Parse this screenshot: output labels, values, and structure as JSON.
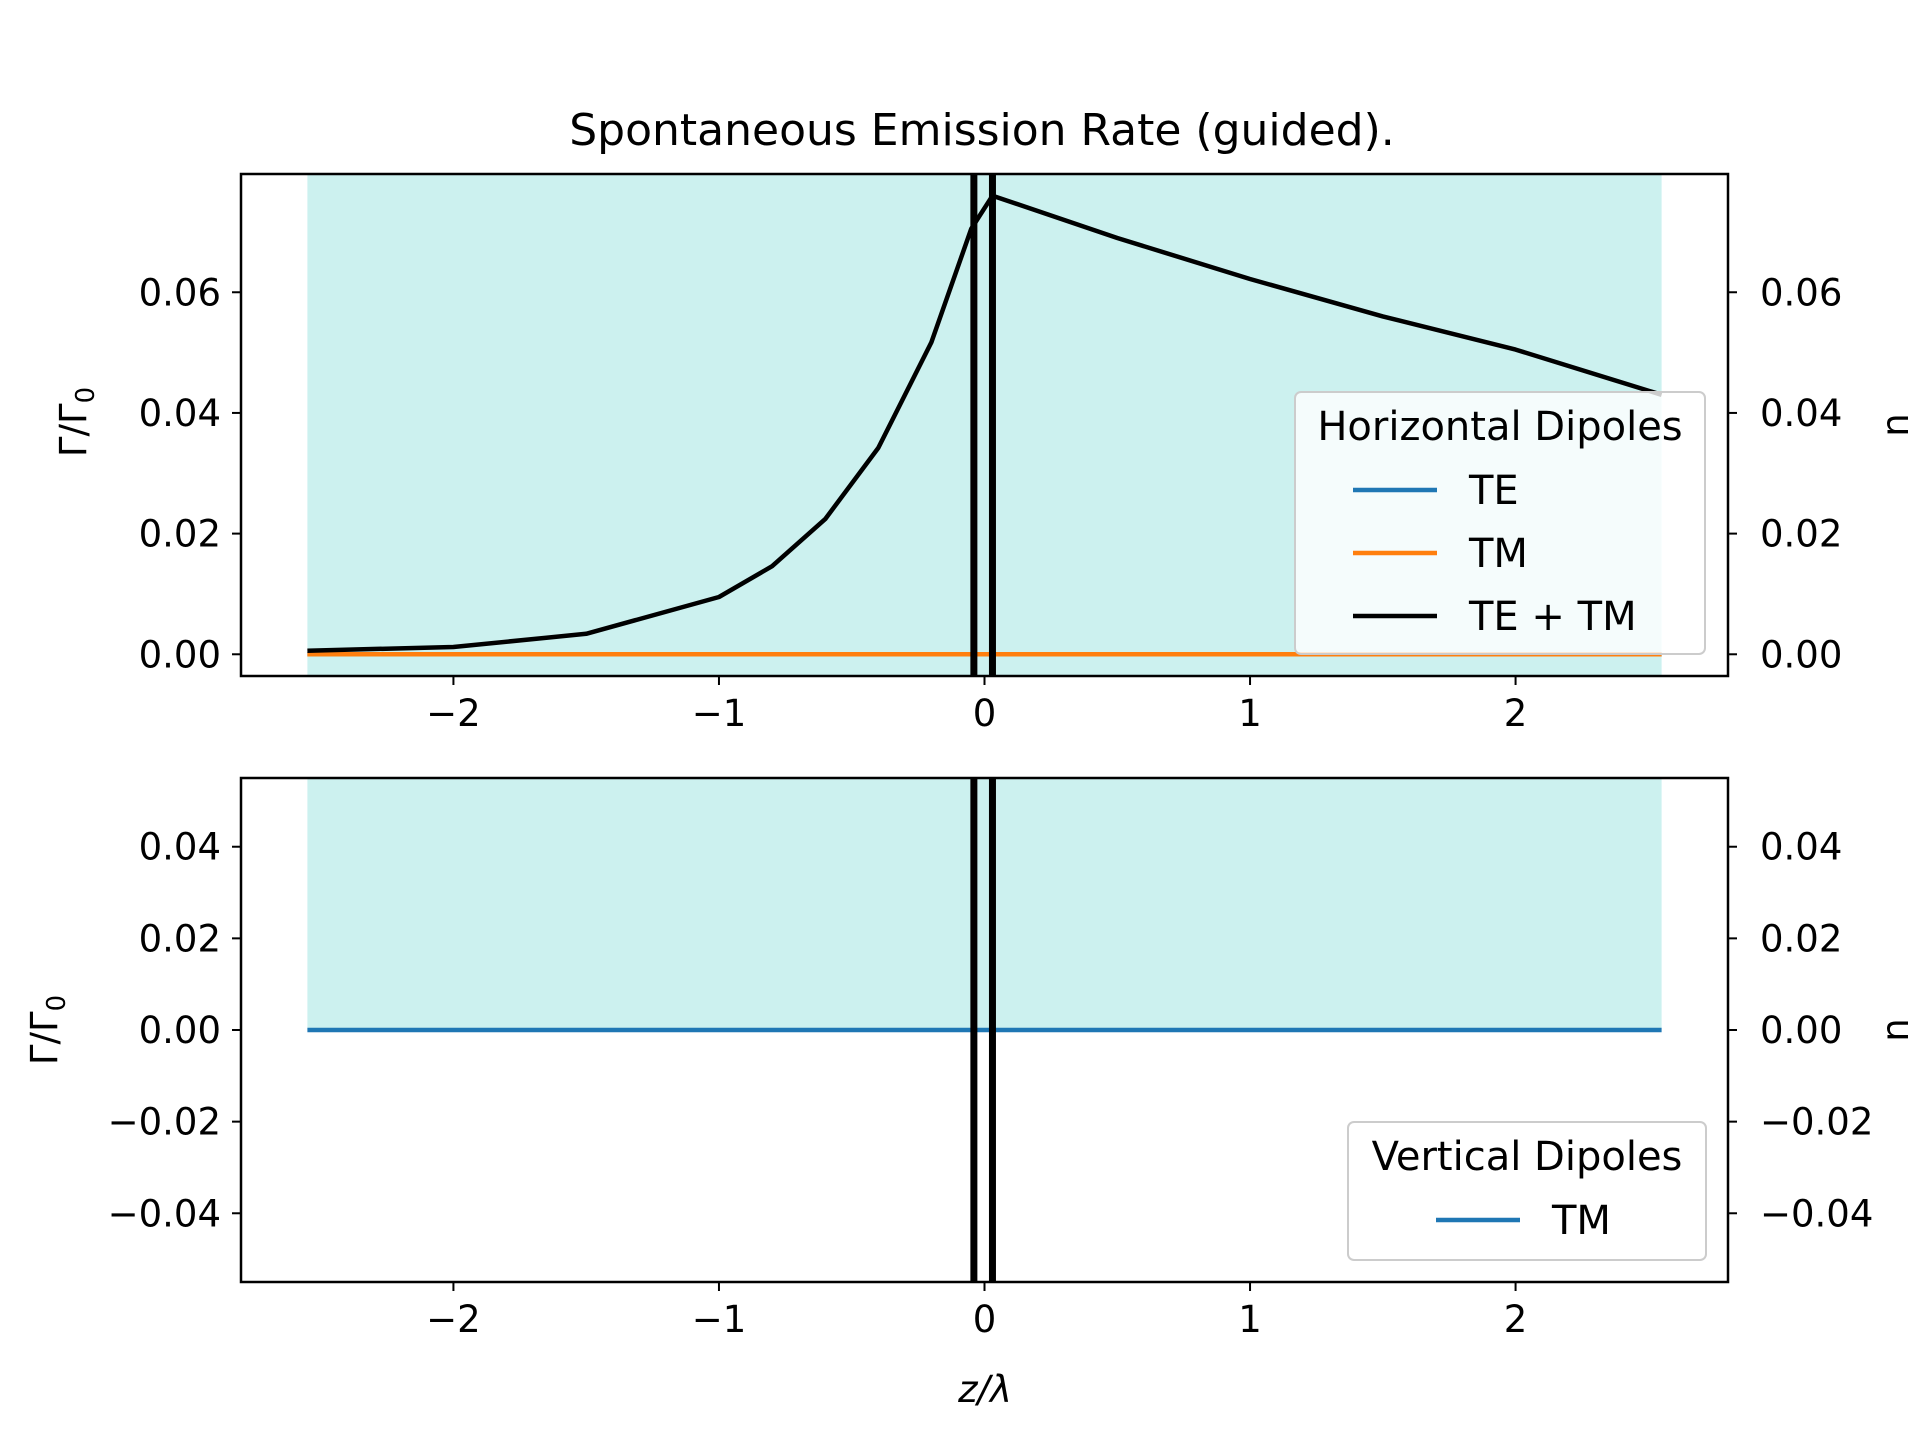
{
  "chart_data": [
    {
      "type": "line",
      "title": "Spontaneous Emission Rate (guided).",
      "ylabel": "Γ/Γ",
      "ylabel_sub": "0",
      "ylabel_right": "n",
      "xlim": [
        -2.8,
        2.8
      ],
      "ylim": [
        -0.0036,
        0.0796
      ],
      "x_ticks": [
        -2,
        -1,
        0,
        1,
        2
      ],
      "x_tick_labels": [
        "−2",
        "−1",
        "0",
        "1",
        "2"
      ],
      "y_ticks": [
        0,
        0.02,
        0.04,
        0.06
      ],
      "y_tick_labels": [
        "0.00",
        "0.02",
        "0.04",
        "0.06"
      ],
      "y_tick_labels_right": [
        "0.00",
        "0.02",
        "0.04",
        "0.06"
      ],
      "shaded_region": {
        "x": [
          -2.55,
          2.55
        ],
        "color": "#ccf1ef"
      },
      "vertical_lines": [
        -0.04,
        0.03
      ],
      "legend_title": "Horizontal Dipoles",
      "legend_position": "center-right",
      "grid": false,
      "series": [
        {
          "name": "TE",
          "color": "#1f77b4",
          "x": [
            -2.55,
            2.55
          ],
          "y": [
            0,
            0
          ]
        },
        {
          "name": "TM",
          "color": "#ff7f0e",
          "x": [
            -2.55,
            2.55
          ],
          "y": [
            0,
            0
          ]
        },
        {
          "name": "TE + TM",
          "color": "#000000",
          "x": [
            -2.55,
            -2.0,
            -1.5,
            -1.0,
            -0.8,
            -0.6,
            -0.4,
            -0.2,
            -0.05,
            0.03,
            0.5,
            1.0,
            1.5,
            2.0,
            2.55
          ],
          "y": [
            0.0006,
            0.0012,
            0.0034,
            0.0095,
            0.0146,
            0.0224,
            0.0342,
            0.0517,
            0.0705,
            0.076,
            0.069,
            0.0622,
            0.056,
            0.0505,
            0.043
          ]
        }
      ]
    },
    {
      "type": "line",
      "xlabel": "z/λ",
      "ylabel": "Γ/Γ",
      "ylabel_sub": "0",
      "ylabel_right": "n",
      "xlim": [
        -2.8,
        2.8
      ],
      "ylim": [
        -0.055,
        0.055
      ],
      "x_ticks": [
        -2,
        -1,
        0,
        1,
        2
      ],
      "x_tick_labels": [
        "−2",
        "−1",
        "0",
        "1",
        "2"
      ],
      "y_ticks": [
        -0.04,
        -0.02,
        0,
        0.02,
        0.04
      ],
      "y_tick_labels": [
        "−0.04",
        "−0.02",
        "0.00",
        "0.02",
        "0.04"
      ],
      "y_tick_labels_right": [
        "−0.04",
        "−0.02",
        "0.00",
        "0.02",
        "0.04"
      ],
      "shaded_region": {
        "x": [
          -2.55,
          2.55
        ],
        "y_from": 0,
        "color": "#ccf1ef"
      },
      "vertical_lines": [
        -0.04,
        0.03
      ],
      "legend_title": "Vertical Dipoles",
      "legend_position": "lower-right",
      "grid": false,
      "series": [
        {
          "name": "TM",
          "color": "#1f77b4",
          "x": [
            -2.55,
            2.55
          ],
          "y": [
            0,
            0
          ]
        }
      ]
    }
  ]
}
